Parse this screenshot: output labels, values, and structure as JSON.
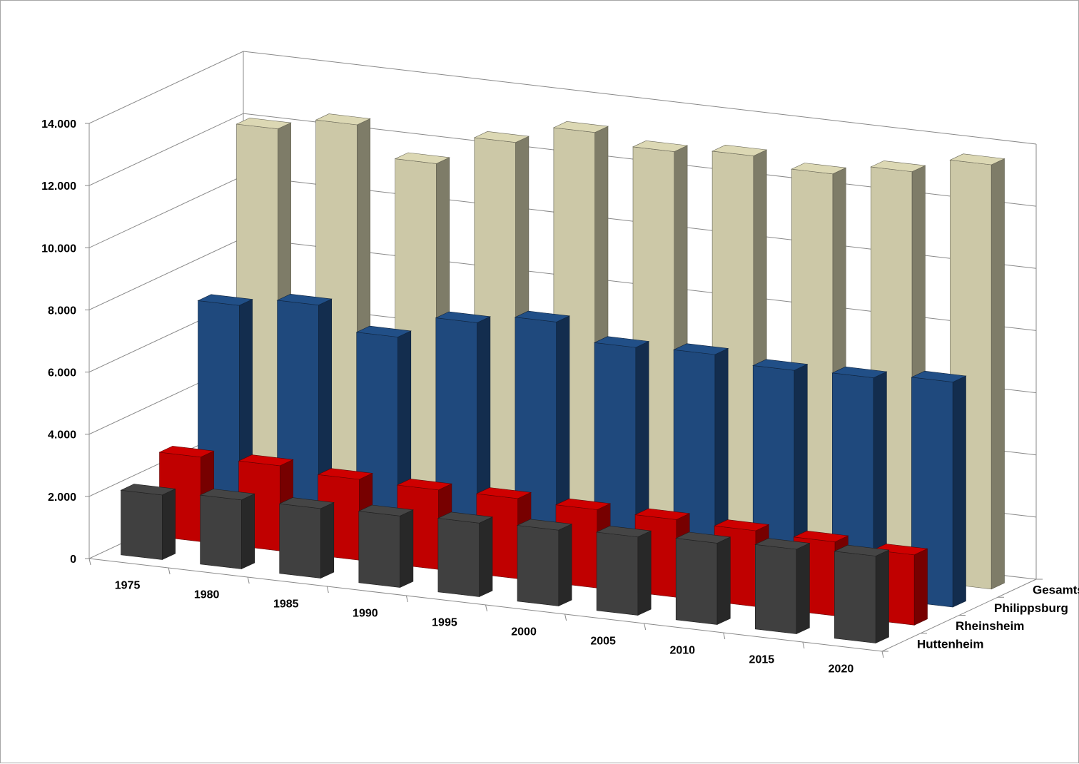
{
  "chart_data": {
    "type": "bar",
    "variant": "3d-column",
    "categories": [
      "1975",
      "1980",
      "1985",
      "1990",
      "1995",
      "2000",
      "2005",
      "2010",
      "2015",
      "2020"
    ],
    "series": [
      {
        "name": "Huttenheim",
        "color": "#404040",
        "values": [
          2080,
          2220,
          2240,
          2300,
          2370,
          2440,
          2520,
          2620,
          2720,
          2800
        ]
      },
      {
        "name": "Rheinsheim",
        "color": "#c00000",
        "values": [
          2720,
          2740,
          2600,
          2560,
          2580,
          2520,
          2500,
          2440,
          2380,
          2260
        ]
      },
      {
        "name": "Philippsburg",
        "color": "#1f497d",
        "values": [
          7020,
          7330,
          6600,
          7360,
          7680,
          7160,
          7230,
          7020,
          7080,
          7240
        ]
      },
      {
        "name": "Gesamtstadt",
        "color": "#ccc8a7",
        "values": [
          12120,
          12550,
          11600,
          12580,
          13200,
          12880,
          13040,
          12760,
          13130,
          13650
        ]
      }
    ],
    "y_ticks": [
      "0",
      "2.000",
      "4.000",
      "6.000",
      "8.000",
      "10.000",
      "12.000",
      "14.000"
    ],
    "ylim": [
      0,
      14000
    ],
    "grid": true,
    "title": "",
    "xlabel": "",
    "ylabel": ""
  }
}
